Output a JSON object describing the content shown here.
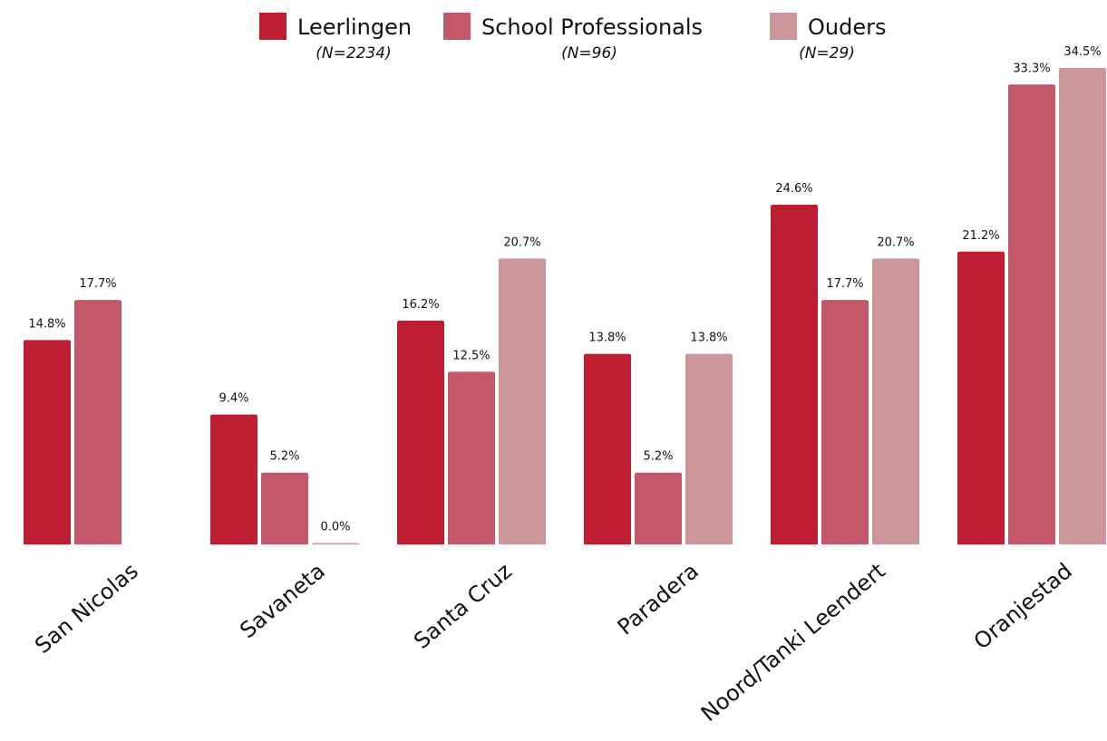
{
  "chart_data": {
    "type": "bar",
    "categories": [
      "San Nicolas",
      "Savaneta",
      "Santa Cruz",
      "Paradera",
      "Noord/Tanki Leendert",
      "Oranjestad"
    ],
    "series": [
      {
        "name": "Leerlingen",
        "n_label": "(N=2234)",
        "color": "#be1e32",
        "values": [
          14.8,
          9.4,
          16.2,
          13.8,
          24.6,
          21.2
        ],
        "labels": [
          "14.8%",
          "9.4%",
          "16.2%",
          "13.8%",
          "24.6%",
          "21.2%"
        ]
      },
      {
        "name": "School Professionals",
        "n_label": "(N=96)",
        "color": "#c25868",
        "values": [
          17.7,
          5.2,
          12.5,
          5.2,
          17.7,
          33.3
        ],
        "labels": [
          "17.7%",
          "5.2%",
          "12.5%",
          "5.2%",
          "17.7%",
          "33.3%"
        ]
      },
      {
        "name": "Ouders",
        "n_label": "(N=29)",
        "color": "#cd969b",
        "values": [
          null,
          0.0,
          20.7,
          13.8,
          20.7,
          34.5
        ],
        "labels": [
          "",
          "0.0%",
          "20.7%",
          "13.8%",
          "20.7%",
          "34.5%"
        ]
      }
    ],
    "ylim": [
      0,
      34.5
    ],
    "grid": false,
    "legend_position": "top-center"
  }
}
